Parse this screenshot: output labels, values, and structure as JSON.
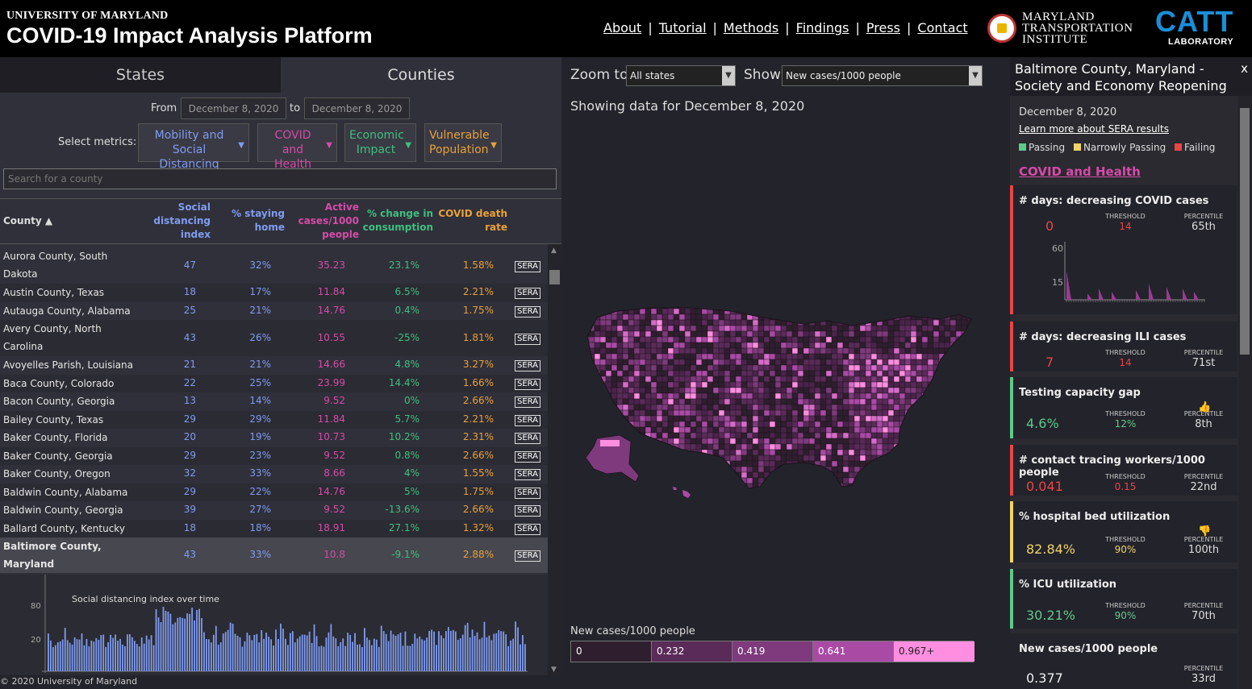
{
  "header": {
    "university": "UNIVERSITY OF MARYLAND",
    "title": "COVID-19 Impact Analysis Platform",
    "nav": [
      "About",
      "Tutorial",
      "Methods",
      "Findings",
      "Press",
      "Contact"
    ],
    "mti": [
      "MARYLAND",
      "TRANSPORTATION",
      "INSTITUTE"
    ],
    "catt_main": "CATT",
    "catt_sub": "LABORATORY"
  },
  "left": {
    "tabs": [
      "States",
      "Counties"
    ],
    "from_label": "From",
    "to_label": "to",
    "from_date": "December 8, 2020",
    "to_date": "December 8, 2020",
    "metrics_label": "Select metrics:",
    "metric_buttons": [
      {
        "label1": "Mobility and",
        "label2": "Social Distancing",
        "color": "#7f9cf0"
      },
      {
        "label1": "COVID",
        "label2": "and Health",
        "color": "#d54ba8"
      },
      {
        "label1": "Economic",
        "label2": "Impact",
        "color": "#3fbf7f"
      },
      {
        "label1": "Vulnerable",
        "label2": "Population",
        "color": "#e8a13a"
      }
    ],
    "search_placeholder": "Search for a county",
    "columns": {
      "county": "County ▲",
      "sdi": [
        "Social",
        "distancing",
        "index"
      ],
      "home": [
        "% staying",
        "home"
      ],
      "active": [
        "Active",
        "cases/1000",
        "people"
      ],
      "consumption": [
        "% change in",
        "consumption"
      ],
      "death": [
        "COVID death",
        "rate"
      ]
    },
    "sera_label": "SERA",
    "rows": [
      {
        "name": [
          "Aurora County, South",
          "Dakota"
        ],
        "sdi": "47",
        "home": "32%",
        "active": "35.23",
        "cons": "23.1%",
        "death": "1.58%"
      },
      {
        "name": [
          "Austin County, Texas"
        ],
        "sdi": "18",
        "home": "17%",
        "active": "11.84",
        "cons": "6.5%",
        "death": "2.21%"
      },
      {
        "name": [
          "Autauga County, Alabama"
        ],
        "sdi": "25",
        "home": "21%",
        "active": "14.76",
        "cons": "0.4%",
        "death": "1.75%"
      },
      {
        "name": [
          "Avery County, North",
          "Carolina"
        ],
        "sdi": "43",
        "home": "26%",
        "active": "10.55",
        "cons": "-25%",
        "death": "1.81%"
      },
      {
        "name": [
          "Avoyelles Parish, Louisiana"
        ],
        "sdi": "21",
        "home": "21%",
        "active": "14.66",
        "cons": "4.8%",
        "death": "3.27%"
      },
      {
        "name": [
          "Baca County, Colorado"
        ],
        "sdi": "22",
        "home": "25%",
        "active": "23.99",
        "cons": "14.4%",
        "death": "1.66%"
      },
      {
        "name": [
          "Bacon County, Georgia"
        ],
        "sdi": "13",
        "home": "14%",
        "active": "9.52",
        "cons": "0%",
        "death": "2.66%"
      },
      {
        "name": [
          "Bailey County, Texas"
        ],
        "sdi": "29",
        "home": "29%",
        "active": "11.84",
        "cons": "5.7%",
        "death": "2.21%"
      },
      {
        "name": [
          "Baker County, Florida"
        ],
        "sdi": "20",
        "home": "19%",
        "active": "10.73",
        "cons": "10.2%",
        "death": "2.31%"
      },
      {
        "name": [
          "Baker County, Georgia"
        ],
        "sdi": "29",
        "home": "23%",
        "active": "9.52",
        "cons": "0.8%",
        "death": "2.66%"
      },
      {
        "name": [
          "Baker County, Oregon"
        ],
        "sdi": "32",
        "home": "33%",
        "active": "8.66",
        "cons": "4%",
        "death": "1.55%"
      },
      {
        "name": [
          "Baldwin County, Alabama"
        ],
        "sdi": "29",
        "home": "22%",
        "active": "14.76",
        "cons": "5%",
        "death": "1.75%"
      },
      {
        "name": [
          "Baldwin County, Georgia"
        ],
        "sdi": "39",
        "home": "27%",
        "active": "9.52",
        "cons": "-13.6%",
        "death": "2.66%"
      },
      {
        "name": [
          "Ballard County, Kentucky"
        ],
        "sdi": "18",
        "home": "18%",
        "active": "18.91",
        "cons": "27.1%",
        "death": "1.32%"
      },
      {
        "name": [
          "Baltimore County,",
          "Maryland"
        ],
        "sdi": "43",
        "home": "33%",
        "active": "10.8",
        "cons": "-9.1%",
        "death": "2.88%",
        "selected": true
      }
    ],
    "sd_chart": {
      "title": "Social distancing index over time",
      "y_ticks": [
        "80",
        "20"
      ]
    },
    "footer": "© 2020 University of Maryland"
  },
  "mid": {
    "zoom_label": "Zoom to",
    "zoom_value": "All states",
    "show_label": "Show",
    "show_value": "New cases/1000 people",
    "showing": "Showing data for December 8, 2020",
    "legend_title": "New cases/1000 people",
    "legend": [
      {
        "label": "0",
        "color": "#2e1e2e"
      },
      {
        "label": "0.232",
        "color": "#5a2b58"
      },
      {
        "label": "0.419",
        "color": "#7e3a7c"
      },
      {
        "label": "0.641",
        "color": "#a94aa5"
      },
      {
        "label": "0.967+",
        "color": "#ff8ee0"
      }
    ]
  },
  "right": {
    "title": "Baltimore County, Maryland - Society and Economy Reopening Assessment",
    "close": "x",
    "date": "December 8, 2020",
    "learn": "Learn more about SERA results",
    "legend": [
      {
        "label": "Passing",
        "color": "#5fc98a"
      },
      {
        "label": "Narrowly Passing",
        "color": "#f0d36a"
      },
      {
        "label": "Failing",
        "color": "#e84545"
      }
    ],
    "section": "COVID and Health",
    "threshold_label": "THRESHOLD",
    "percentile_label": "PERCENTILE",
    "cards": [
      {
        "title": "# days: decreasing COVID cases",
        "value": "0",
        "threshold": "14",
        "percentile": "65th",
        "status": "#e84545",
        "chart_ticks": [
          "60",
          "15"
        ]
      },
      {
        "title": "# days: decreasing ILI cases",
        "value": "7",
        "threshold": "14",
        "percentile": "71st",
        "status": "#e84545"
      },
      {
        "title": "Testing capacity gap",
        "value": "4.6%",
        "threshold": "12%",
        "percentile": "8th",
        "status": "#5fc98a",
        "icon": "thumbs-up-icon"
      },
      {
        "title": "# contact tracing workers/1000 people",
        "value": "0.041",
        "threshold": "0.15",
        "percentile": "22nd",
        "status": "#e84545"
      },
      {
        "title": "% hospital bed utilization",
        "value": "82.84%",
        "threshold": "90%",
        "percentile": "100th",
        "status": "#f0d36a",
        "icon": "thumbs-down-icon"
      },
      {
        "title": "% ICU utilization",
        "value": "30.21%",
        "threshold": "90%",
        "percentile": "70th",
        "status": "#5fc98a"
      },
      {
        "title": "New cases/1000 people",
        "value": "0.377",
        "percentile": "33rd",
        "status": ""
      }
    ]
  }
}
